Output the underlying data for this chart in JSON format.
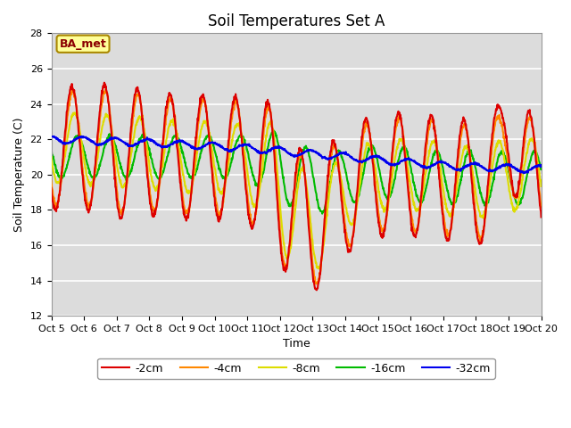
{
  "title": "Soil Temperatures Set A",
  "xlabel": "Time",
  "ylabel": "Soil Temperature (C)",
  "ylim": [
    12,
    28
  ],
  "yticks": [
    12,
    14,
    16,
    18,
    20,
    22,
    24,
    26,
    28
  ],
  "xlim": [
    0,
    15
  ],
  "xtick_labels": [
    "Oct 5",
    "Oct 6",
    "Oct 7",
    "Oct 8",
    "Oct 9",
    "Oct 10",
    "Oct 11",
    "Oct 12",
    "Oct 13",
    "Oct 14",
    "Oct 15",
    "Oct 16",
    "Oct 17",
    "Oct 18",
    "Oct 19",
    "Oct 20"
  ],
  "legend_labels": [
    "-2cm",
    "-4cm",
    "-8cm",
    "-16cm",
    "-32cm"
  ],
  "line_colors": [
    "#DD0000",
    "#FF8800",
    "#DDDD00",
    "#00BB00",
    "#0000EE"
  ],
  "annotation_text": "BA_met",
  "annotation_color": "#8B0000",
  "annotation_bg": "#FFFF99",
  "annotation_edge": "#AA8800",
  "background_color": "#DCDCDC",
  "fig_background": "#FFFFFF",
  "title_fontsize": 12,
  "axis_fontsize": 9,
  "tick_fontsize": 8,
  "legend_fontsize": 9,
  "line_width": 1.5
}
